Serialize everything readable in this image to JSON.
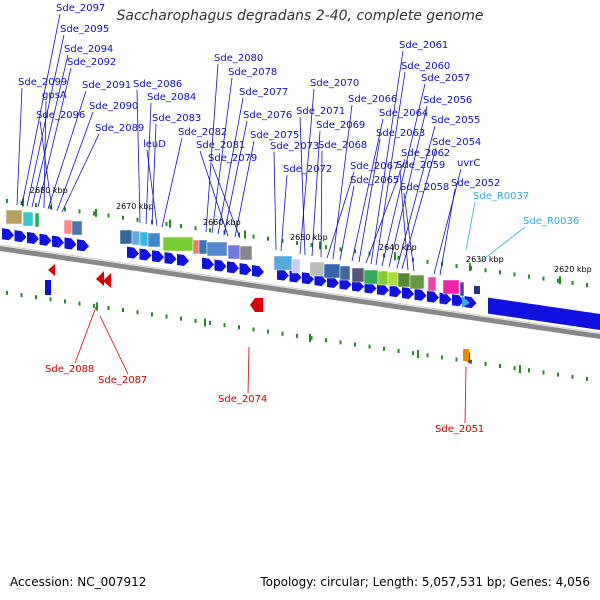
{
  "title": "Saccharophagus degradans 2-40, complete genome",
  "footer": {
    "accession": "Accession: NC_007912",
    "info": "Topology: circular; Length: 5,057,531 bp; Genes: 4,056"
  },
  "colors": {
    "cds": "#1010e0",
    "label_forward": "#1010c0",
    "label_reverse": "#cc0000",
    "label_rna": "#33aadd",
    "axis": "#888888",
    "tick": "#228822"
  },
  "scale_ticks": [
    "2680 kbp",
    "2670 kbp",
    "2660 kbp",
    "2650 kbp",
    "2640 kbp",
    "2630 kbp",
    "2620 kbp"
  ],
  "forward_genes": [
    "Sde_2097",
    "Sde_2095",
    "Sde_2094",
    "Sde_2092",
    "Sde_2099",
    "gpsA",
    "Sde_2091",
    "Sde_2096",
    "Sde_2090",
    "Sde_2089",
    "Sde_2086",
    "Sde_2084",
    "Sde_2083",
    "leuD",
    "Sde_2082",
    "Sde_2080",
    "Sde_2078",
    "Sde_2077",
    "Sde_2076",
    "Sde_2081",
    "Sde_2075",
    "Sde_2079",
    "Sde_2073",
    "Sde_2072",
    "Sde_2070",
    "Sde_2071",
    "Sde_2069",
    "Sde_2068",
    "Sde_2067",
    "Sde_2066",
    "Sde_2065",
    "Sde_2064",
    "Sde_2063",
    "Sde_2062",
    "Sde_2061",
    "Sde_2060",
    "Sde_2057",
    "Sde_2056",
    "Sde_2055",
    "Sde_2054",
    "Sde_2059",
    "Sde_2058",
    "uvrC",
    "Sde_2052"
  ],
  "rna_genes": [
    "Sde_R0037",
    "Sde_R0036"
  ],
  "reverse_genes": [
    "Sde_2088",
    "Sde_2087",
    "Sde_2074",
    "Sde_2051"
  ]
}
